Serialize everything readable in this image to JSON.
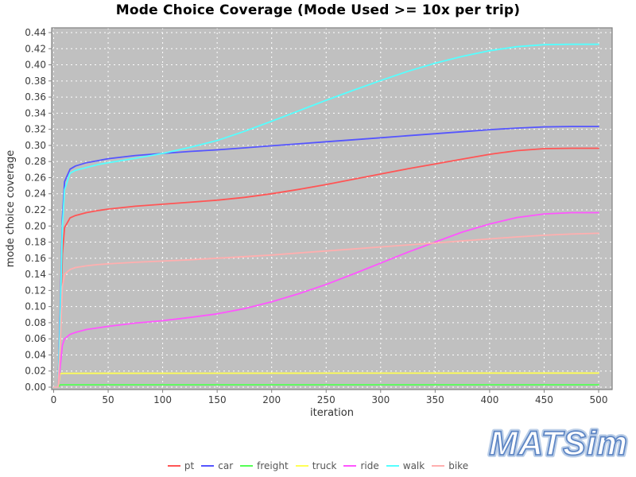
{
  "title": "Mode Choice Coverage (Mode Used >= 10x per trip)",
  "logo": {
    "text": "MATSim",
    "outline_color": "#5f87c5",
    "halo_color": "#bccfe8",
    "fill_color": "#ffffff"
  },
  "chart_data": {
    "type": "line",
    "title": "Mode Choice Coverage (Mode Used >= 10x per trip)",
    "xlabel": "iteration",
    "ylabel": "mode choice coverage",
    "xlim": [
      0,
      500
    ],
    "ylim": [
      0,
      0.44
    ],
    "x_ticks": [
      0,
      50,
      100,
      150,
      200,
      250,
      300,
      350,
      400,
      450,
      500
    ],
    "y_ticks": [
      0.0,
      0.02,
      0.04,
      0.06,
      0.08,
      0.1,
      0.12,
      0.14,
      0.16,
      0.18,
      0.2,
      0.22,
      0.24,
      0.26,
      0.28,
      0.3,
      0.32,
      0.34,
      0.36,
      0.38,
      0.4,
      0.42,
      0.44
    ],
    "grid": true,
    "grid_color": "#ffffff",
    "plot_bg": "#c0c0c0",
    "border_color": "#808080",
    "tick_label_color": "#3c3c3c",
    "axis_label_color": "#333333",
    "legend_position": "bottom",
    "series": [
      {
        "name": "pt",
        "color": "#FF5555",
        "points": [
          [
            0,
            0
          ],
          [
            4,
            0
          ],
          [
            6,
            0.07
          ],
          [
            8,
            0.165
          ],
          [
            10,
            0.198
          ],
          [
            15,
            0.21
          ],
          [
            20,
            0.213
          ],
          [
            30,
            0.2165
          ],
          [
            40,
            0.219
          ],
          [
            50,
            0.221
          ],
          [
            75,
            0.2245
          ],
          [
            100,
            0.227
          ],
          [
            125,
            0.2295
          ],
          [
            150,
            0.232
          ],
          [
            175,
            0.2355
          ],
          [
            200,
            0.24
          ],
          [
            225,
            0.2455
          ],
          [
            250,
            0.2515
          ],
          [
            275,
            0.258
          ],
          [
            300,
            0.2645
          ],
          [
            325,
            0.271
          ],
          [
            350,
            0.277
          ],
          [
            375,
            0.283
          ],
          [
            400,
            0.289
          ],
          [
            425,
            0.2935
          ],
          [
            450,
            0.296
          ],
          [
            475,
            0.2965
          ],
          [
            500,
            0.2965
          ]
        ]
      },
      {
        "name": "car",
        "color": "#5555FF",
        "points": [
          [
            0,
            0
          ],
          [
            4,
            0
          ],
          [
            6,
            0.09
          ],
          [
            8,
            0.21
          ],
          [
            10,
            0.255
          ],
          [
            15,
            0.2705
          ],
          [
            20,
            0.2745
          ],
          [
            30,
            0.2785
          ],
          [
            40,
            0.281
          ],
          [
            50,
            0.2835
          ],
          [
            75,
            0.2875
          ],
          [
            100,
            0.29
          ],
          [
            125,
            0.2925
          ],
          [
            150,
            0.2945
          ],
          [
            175,
            0.297
          ],
          [
            200,
            0.2995
          ],
          [
            225,
            0.302
          ],
          [
            250,
            0.3045
          ],
          [
            275,
            0.307
          ],
          [
            300,
            0.3095
          ],
          [
            325,
            0.312
          ],
          [
            350,
            0.3145
          ],
          [
            375,
            0.317
          ],
          [
            400,
            0.3195
          ],
          [
            425,
            0.3215
          ],
          [
            450,
            0.323
          ],
          [
            475,
            0.3235
          ],
          [
            500,
            0.3235
          ]
        ]
      },
      {
        "name": "freight",
        "color": "#55FF55",
        "points": [
          [
            0,
            0
          ],
          [
            4,
            0
          ],
          [
            6,
            0.003
          ],
          [
            10,
            0.003
          ],
          [
            250,
            0.003
          ],
          [
            500,
            0.003
          ]
        ]
      },
      {
        "name": "truck",
        "color": "#FFFF55",
        "points": [
          [
            0,
            0
          ],
          [
            4,
            0
          ],
          [
            6,
            0.017
          ],
          [
            10,
            0.0172
          ],
          [
            250,
            0.0174
          ],
          [
            500,
            0.0175
          ]
        ]
      },
      {
        "name": "ride",
        "color": "#FF55FF",
        "points": [
          [
            0,
            0
          ],
          [
            4,
            0
          ],
          [
            6,
            0.025
          ],
          [
            8,
            0.052
          ],
          [
            10,
            0.06
          ],
          [
            15,
            0.0655
          ],
          [
            20,
            0.068
          ],
          [
            30,
            0.0715
          ],
          [
            40,
            0.0735
          ],
          [
            50,
            0.0755
          ],
          [
            75,
            0.0795
          ],
          [
            100,
            0.0825
          ],
          [
            125,
            0.0865
          ],
          [
            150,
            0.091
          ],
          [
            175,
            0.0975
          ],
          [
            200,
            0.106
          ],
          [
            225,
            0.116
          ],
          [
            250,
            0.1275
          ],
          [
            275,
            0.1405
          ],
          [
            300,
            0.154
          ],
          [
            325,
            0.1675
          ],
          [
            350,
            0.18
          ],
          [
            375,
            0.1925
          ],
          [
            400,
            0.2025
          ],
          [
            425,
            0.2105
          ],
          [
            450,
            0.215
          ],
          [
            475,
            0.2165
          ],
          [
            500,
            0.2165
          ]
        ]
      },
      {
        "name": "walk",
        "color": "#55FFFF",
        "points": [
          [
            0,
            0
          ],
          [
            4,
            0
          ],
          [
            6,
            0.08
          ],
          [
            8,
            0.2
          ],
          [
            10,
            0.245
          ],
          [
            15,
            0.2655
          ],
          [
            20,
            0.269
          ],
          [
            30,
            0.2725
          ],
          [
            40,
            0.276
          ],
          [
            50,
            0.2785
          ],
          [
            75,
            0.284
          ],
          [
            100,
            0.29
          ],
          [
            125,
            0.2975
          ],
          [
            150,
            0.306
          ],
          [
            175,
            0.3175
          ],
          [
            200,
            0.33
          ],
          [
            225,
            0.343
          ],
          [
            250,
            0.356
          ],
          [
            275,
            0.3685
          ],
          [
            300,
            0.3805
          ],
          [
            325,
            0.392
          ],
          [
            350,
            0.402
          ],
          [
            375,
            0.4105
          ],
          [
            400,
            0.4175
          ],
          [
            425,
            0.4225
          ],
          [
            450,
            0.425
          ],
          [
            475,
            0.4255
          ],
          [
            500,
            0.4255
          ]
        ]
      },
      {
        "name": "bike",
        "color": "#FFAFAF",
        "points": [
          [
            0,
            0
          ],
          [
            4,
            0
          ],
          [
            6,
            0.05
          ],
          [
            8,
            0.125
          ],
          [
            10,
            0.14
          ],
          [
            15,
            0.146
          ],
          [
            20,
            0.1485
          ],
          [
            30,
            0.1505
          ],
          [
            40,
            0.152
          ],
          [
            50,
            0.153
          ],
          [
            75,
            0.155
          ],
          [
            100,
            0.1565
          ],
          [
            125,
            0.158
          ],
          [
            150,
            0.16
          ],
          [
            175,
            0.162
          ],
          [
            200,
            0.164
          ],
          [
            225,
            0.1665
          ],
          [
            250,
            0.169
          ],
          [
            275,
            0.1715
          ],
          [
            300,
            0.174
          ],
          [
            325,
            0.1765
          ],
          [
            350,
            0.179
          ],
          [
            375,
            0.1815
          ],
          [
            400,
            0.184
          ],
          [
            425,
            0.1865
          ],
          [
            450,
            0.1885
          ],
          [
            475,
            0.19
          ],
          [
            500,
            0.191
          ]
        ]
      }
    ]
  }
}
